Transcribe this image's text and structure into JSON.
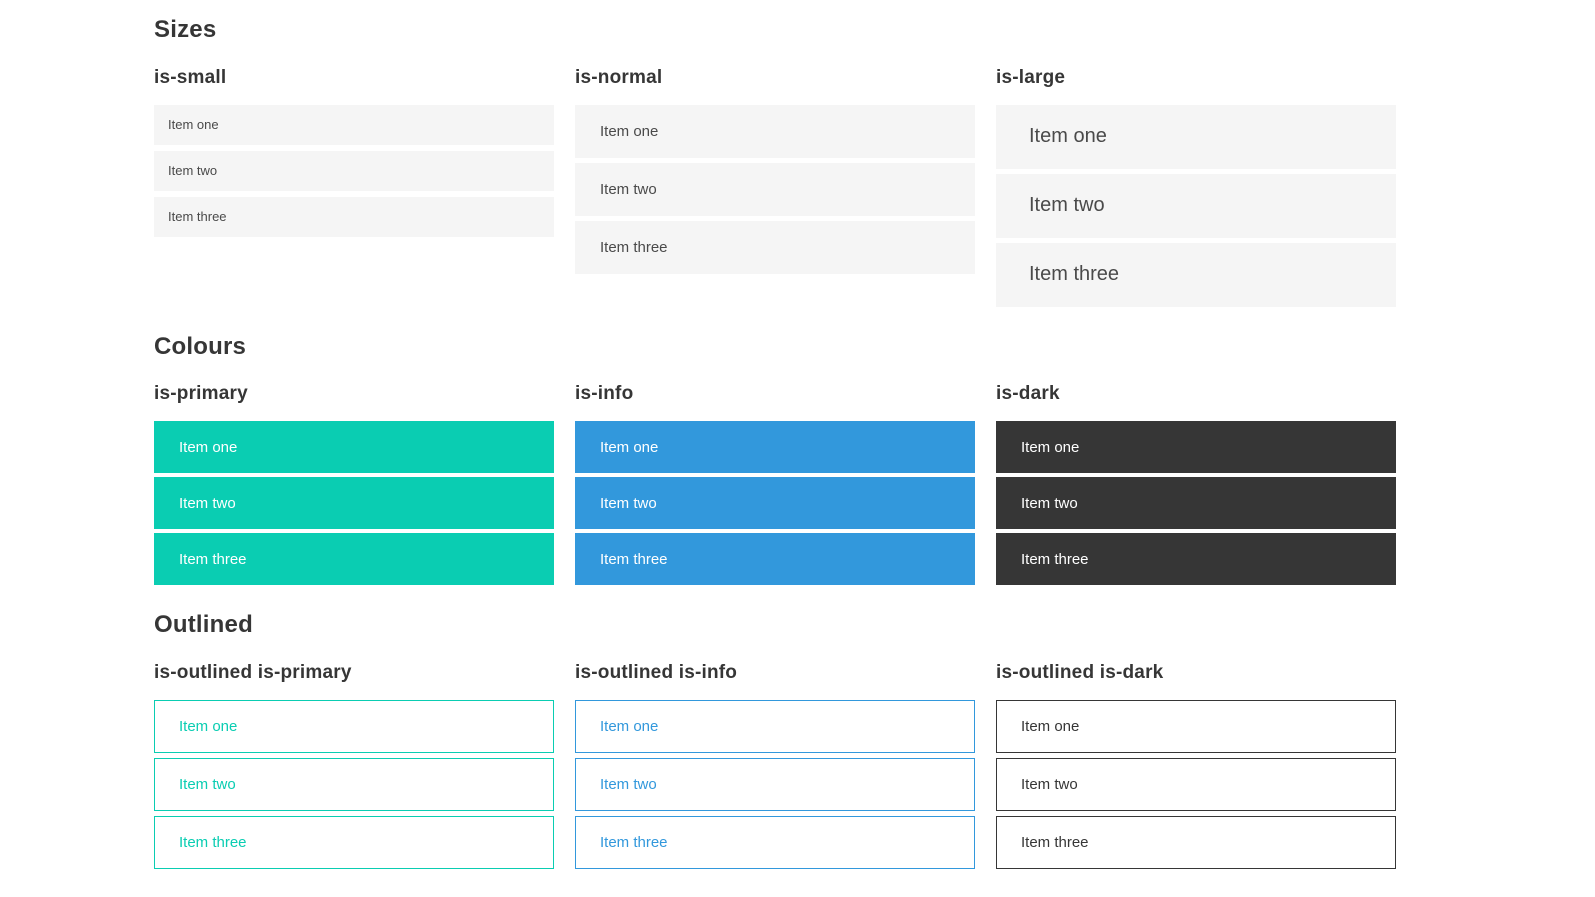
{
  "colors": {
    "primary": "#0acdb2",
    "info": "#3298dc",
    "dark": "#363636",
    "item_background": "#f5f5f5",
    "item_text": "#4a4a4a",
    "heading_text": "#363636",
    "page_background": "#ffffff"
  },
  "sections": [
    {
      "title": "Sizes",
      "groups": [
        {
          "label": "is-small",
          "variant": "size-small",
          "items": [
            "Item one",
            "Item two",
            "Item three"
          ]
        },
        {
          "label": "is-normal",
          "variant": "size-normal",
          "items": [
            "Item one",
            "Item two",
            "Item three"
          ]
        },
        {
          "label": "is-large",
          "variant": "size-large",
          "items": [
            "Item one",
            "Item two",
            "Item three"
          ]
        }
      ]
    },
    {
      "title": "Colours",
      "groups": [
        {
          "label": "is-primary",
          "variant": "color-primary",
          "items": [
            "Item one",
            "Item two",
            "Item three"
          ]
        },
        {
          "label": "is-info",
          "variant": "color-info",
          "items": [
            "Item one",
            "Item two",
            "Item three"
          ]
        },
        {
          "label": "is-dark",
          "variant": "color-dark",
          "items": [
            "Item one",
            "Item two",
            "Item three"
          ]
        }
      ]
    },
    {
      "title": "Outlined",
      "groups": [
        {
          "label": "is-outlined is-primary",
          "variant": "outlined-primary",
          "items": [
            "Item one",
            "Item two",
            "Item three"
          ]
        },
        {
          "label": "is-outlined is-info",
          "variant": "outlined-info",
          "items": [
            "Item one",
            "Item two",
            "Item three"
          ]
        },
        {
          "label": "is-outlined is-dark",
          "variant": "outlined-dark",
          "items": [
            "Item one",
            "Item two",
            "Item three"
          ]
        }
      ]
    }
  ]
}
